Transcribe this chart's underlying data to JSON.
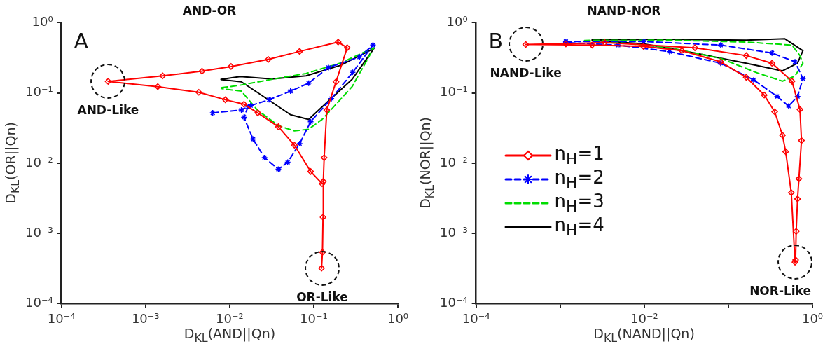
{
  "chart_data": [
    {
      "type": "line",
      "title": "AND-OR",
      "xlabel": "D$_{KL}$(AND||Qn)",
      "ylabel": "D$_{KL}$(OR||Qn)",
      "log": "xy",
      "grid": false,
      "legend": false,
      "xlim": [
        0.0001,
        1
      ],
      "ylim": [
        0.0001,
        1
      ],
      "xticks": [
        {
          "value": 0.0001,
          "label": "10⁻⁴"
        },
        {
          "value": 0.001,
          "label": "10⁻³"
        },
        {
          "value": 0.01,
          "label": "10⁻²"
        },
        {
          "value": 0.1,
          "label": "10⁻¹"
        },
        {
          "value": 1,
          "label": "10⁰"
        }
      ],
      "yticks": [
        {
          "value": 0.0001,
          "label": "10⁻⁴"
        },
        {
          "value": 0.001,
          "label": "10⁻³"
        },
        {
          "value": 0.01,
          "label": "10⁻²"
        },
        {
          "value": 0.1,
          "label": "10⁻¹"
        },
        {
          "value": 1,
          "label": "10⁰"
        }
      ],
      "annotations": [
        "A",
        {
          "text": "AND-Like",
          "x": 0.00036,
          "y": 0.146
        },
        {
          "text": "OR-Like",
          "x": 0.126,
          "y": 0.00032
        }
      ],
      "series": [
        {
          "color": "#ff0000",
          "marker": "diamond",
          "line_style": "solid",
          "x": [
            0.124,
            0.127,
            0.129,
            0.13,
            0.133,
            0.143,
            0.184,
            0.25,
            0.195,
            0.068,
            0.0288,
            0.0104,
            0.0047,
            0.0016,
            0.00036,
            0.0014,
            0.0043,
            0.0089,
            0.0148,
            0.0216,
            0.038,
            0.059,
            0.092,
            0.126
          ],
          "values": [
            0.00032,
            0.00054,
            0.0017,
            0.0055,
            0.012,
            0.057,
            0.144,
            0.44,
            0.53,
            0.39,
            0.3,
            0.238,
            0.204,
            0.175,
            0.146,
            0.123,
            0.102,
            0.08,
            0.069,
            0.052,
            0.033,
            0.018,
            0.0076,
            0.0051
          ]
        },
        {
          "color": "#0000ff",
          "marker": "cross",
          "line_style": "dashed",
          "x": [
            0.0063,
            0.0138,
            0.0166,
            0.0148,
            0.019,
            0.026,
            0.038,
            0.049,
            0.068,
            0.092,
            0.162,
            0.29,
            0.506,
            0.35,
            0.15,
            0.087,
            0.053,
            0.0295,
            0.0178
          ],
          "values": [
            0.052,
            0.057,
            0.064,
            0.045,
            0.022,
            0.012,
            0.0082,
            0.0103,
            0.019,
            0.039,
            0.083,
            0.196,
            0.48,
            0.325,
            0.23,
            0.138,
            0.106,
            0.08,
            0.066
          ]
        },
        {
          "color": "#00dd00",
          "line_style": "dashed",
          "x": [
            0.0081,
            0.0129,
            0.0316,
            0.081,
            0.21,
            0.52,
            0.286,
            0.126,
            0.087,
            0.059,
            0.038,
            0.0214,
            0.0138,
            0.0081
          ],
          "values": [
            0.119,
            0.128,
            0.156,
            0.189,
            0.268,
            0.44,
            0.123,
            0.042,
            0.0305,
            0.0288,
            0.0343,
            0.057,
            0.106,
            0.115
          ]
        },
        {
          "color": "#000000",
          "line_style": "solid",
          "x": [
            0.0079,
            0.0134,
            0.0316,
            0.081,
            0.21,
            0.52,
            0.286,
            0.15,
            0.087,
            0.053,
            0.026,
            0.0138,
            0.0081
          ],
          "values": [
            0.156,
            0.171,
            0.158,
            0.175,
            0.248,
            0.43,
            0.156,
            0.077,
            0.042,
            0.049,
            0.087,
            0.144,
            0.154
          ]
        }
      ]
    },
    {
      "type": "line",
      "title": "NAND-NOR",
      "xlabel": "D$_{KL}$(NAND||Qn)",
      "ylabel": "D$_{KL}$(NOR||Qn)",
      "log": "xy",
      "grid": false,
      "legend": "left",
      "xlim": [
        0.0001,
        1
      ],
      "ylim": [
        0.0001,
        1
      ],
      "xticks": [
        {
          "value": 0.0001,
          "label": "10⁻⁴"
        },
        {
          "value": 0.001,
          "label": null
        },
        {
          "value": 0.01,
          "label": "10⁻²"
        },
        {
          "value": 0.1,
          "label": null
        },
        {
          "value": 1,
          "label": "10⁰"
        }
      ],
      "yticks": [
        {
          "value": 0.0001,
          "label": "10⁻⁴"
        },
        {
          "value": 0.001,
          "label": "10⁻³"
        },
        {
          "value": 0.01,
          "label": "10⁻²"
        },
        {
          "value": 0.1,
          "label": "10⁻¹"
        },
        {
          "value": 1,
          "label": "10⁰"
        }
      ],
      "annotations": [
        "B",
        {
          "text": "NAND-Like",
          "x": 0.00039,
          "y": 0.49
        },
        {
          "text": "NOR-Like",
          "x": 0.62,
          "y": 0.00039
        }
      ],
      "series": [
        {
          "name": "n$_{H}$=1",
          "color": "#ff0000",
          "marker": "diamond",
          "line_style": "solid",
          "x": [
            0.62,
            0.56,
            0.48,
            0.44,
            0.355,
            0.267,
            0.163,
            0.081,
            0.028,
            0.0098,
            0.0024,
            0.00039,
            0.00117,
            0.0034,
            0.04,
            0.163,
            0.33,
            0.57,
            0.71,
            0.74,
            0.69,
            0.665,
            0.64,
            0.63
          ],
          "values": [
            0.00039,
            0.0038,
            0.0146,
            0.025,
            0.054,
            0.093,
            0.167,
            0.277,
            0.4,
            0.46,
            0.48,
            0.49,
            0.5,
            0.52,
            0.44,
            0.34,
            0.265,
            0.147,
            0.058,
            0.021,
            0.006,
            0.0031,
            0.00107,
            0.00042
          ]
        },
        {
          "name": "n$_{H}$=2",
          "color": "#0000ff",
          "marker": "cross",
          "line_style": "dashed",
          "x": [
            0.00117,
            0.0098,
            0.081,
            0.33,
            0.62,
            0.77,
            0.665,
            0.52,
            0.38,
            0.2,
            0.081,
            0.02,
            0.0049,
            0.00117
          ],
          "values": [
            0.54,
            0.54,
            0.48,
            0.37,
            0.277,
            0.16,
            0.089,
            0.065,
            0.089,
            0.153,
            0.265,
            0.387,
            0.48,
            0.52
          ]
        },
        {
          "name": "n$_{H}$=3",
          "color": "#00dd00",
          "line_style": "dashed",
          "x": [
            0.00195,
            0.02,
            0.163,
            0.57,
            0.71,
            0.77,
            0.62,
            0.44,
            0.23,
            0.081,
            0.02,
            0.0049,
            0.00195
          ],
          "values": [
            0.56,
            0.565,
            0.53,
            0.48,
            0.34,
            0.265,
            0.174,
            0.147,
            0.189,
            0.31,
            0.44,
            0.52,
            0.55
          ]
        },
        {
          "name": "n$_{H}$=4",
          "color": "#000000",
          "line_style": "solid",
          "x": [
            0.0024,
            0.02,
            0.163,
            0.47,
            0.77,
            0.665,
            0.44,
            0.163,
            0.04,
            0.0098,
            0.0024
          ],
          "values": [
            0.57,
            0.58,
            0.565,
            0.59,
            0.4,
            0.265,
            0.206,
            0.265,
            0.37,
            0.5,
            0.56
          ]
        }
      ]
    }
  ]
}
